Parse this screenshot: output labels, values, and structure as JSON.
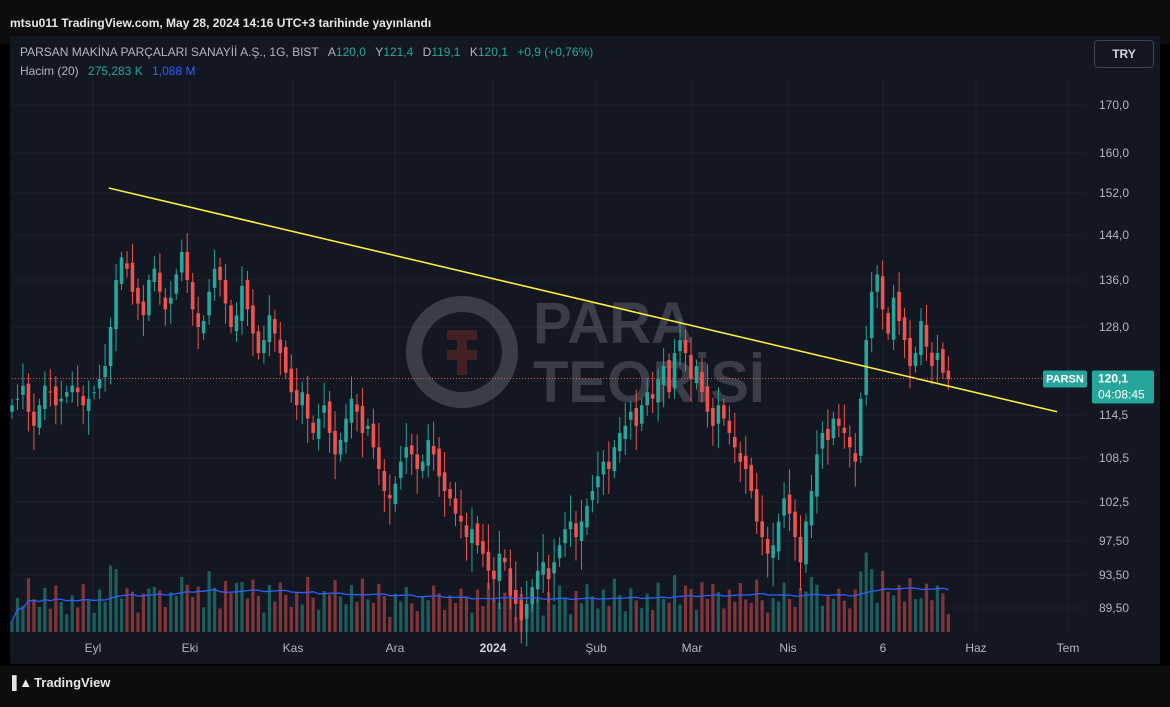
{
  "header": {
    "publish_info": "mtsu011 TradingView.com, May 28, 2024 14:16 UTC+3 tarihinde yayınlandı"
  },
  "legend": {
    "symbol_title": "PARSAN MAKİNA PARÇALARI SANAYİİ A.Ş., 1G, BIST",
    "open_label": "A",
    "open": "120,0",
    "high_label": "Y",
    "high": "121,4",
    "low_label": "D",
    "low": "119,1",
    "close_label": "K",
    "close": "120,1",
    "change": "+0,9 (+0,76%)",
    "volume_label": "Hacim (20)",
    "volume_value": "275,283 K",
    "volume_ma": "1,088 M"
  },
  "currency_button": "TRY",
  "price_label": {
    "ticker": "PARSN",
    "price": "120,1",
    "countdown": "04:08:45"
  },
  "watermark": {
    "line1": "PARA",
    "line2": "TEORİSİ"
  },
  "footer": {
    "brand": "TradingView"
  },
  "colors": {
    "up": "#26a69a",
    "down": "#ef5350",
    "trendline": "#ffeb3b",
    "vol_ma": "#2962ff",
    "background": "#131722",
    "price_tag": "#26a69a"
  },
  "chart_data": {
    "type": "candlestick",
    "y_ticks": [
      "170,0",
      "160,0",
      "152,0",
      "144,0",
      "136,0",
      "128,0",
      "114,5",
      "108,5",
      "102,5",
      "97,50",
      "93,50",
      "89,50"
    ],
    "x_ticks": [
      "Eyl",
      "Eki",
      "Kas",
      "Ara",
      "2024",
      "Şub",
      "Mar",
      "Nis",
      "6",
      "Haz",
      "Tem"
    ],
    "trendline": {
      "from": {
        "date": "2023-08-31",
        "price": 153
      },
      "to": {
        "date": "2024-06-20",
        "price": 115
      }
    },
    "last_price": 120.1,
    "closes": [
      116,
      117,
      119,
      115,
      113,
      116,
      119,
      118,
      116,
      117,
      118,
      119,
      118,
      116,
      117,
      118,
      120,
      122,
      128,
      136,
      140,
      138,
      134,
      132,
      130,
      136,
      138,
      134,
      131,
      133,
      137,
      141,
      136,
      131,
      128,
      129,
      134,
      138,
      136,
      132,
      128,
      130,
      135,
      131,
      127,
      124,
      126,
      130,
      127,
      124,
      121,
      118,
      116,
      118,
      114,
      112,
      114,
      116,
      112,
      109,
      111,
      114,
      117,
      115,
      112,
      113,
      110,
      107,
      104,
      103,
      105,
      108,
      110,
      109,
      107,
      108,
      111,
      109,
      106,
      104,
      103,
      101,
      100,
      98,
      99,
      97,
      96,
      94,
      93,
      96,
      95,
      91,
      90,
      88,
      90,
      92,
      94,
      95,
      93,
      95,
      97,
      99,
      100,
      98,
      100,
      102,
      104,
      106,
      108,
      107,
      110,
      112,
      113,
      115,
      113,
      116,
      118,
      117,
      120,
      122,
      118,
      124,
      126,
      124,
      120,
      122,
      118,
      115,
      113,
      116,
      114,
      112,
      110,
      108,
      107,
      104,
      100,
      98,
      96,
      97,
      100,
      103,
      101,
      98,
      95,
      100,
      104,
      109,
      112,
      111,
      114,
      113,
      112,
      110,
      108,
      117,
      126,
      134,
      137,
      131,
      127,
      133,
      129,
      126,
      122,
      124,
      129,
      125,
      122,
      124,
      121,
      120
    ]
  }
}
